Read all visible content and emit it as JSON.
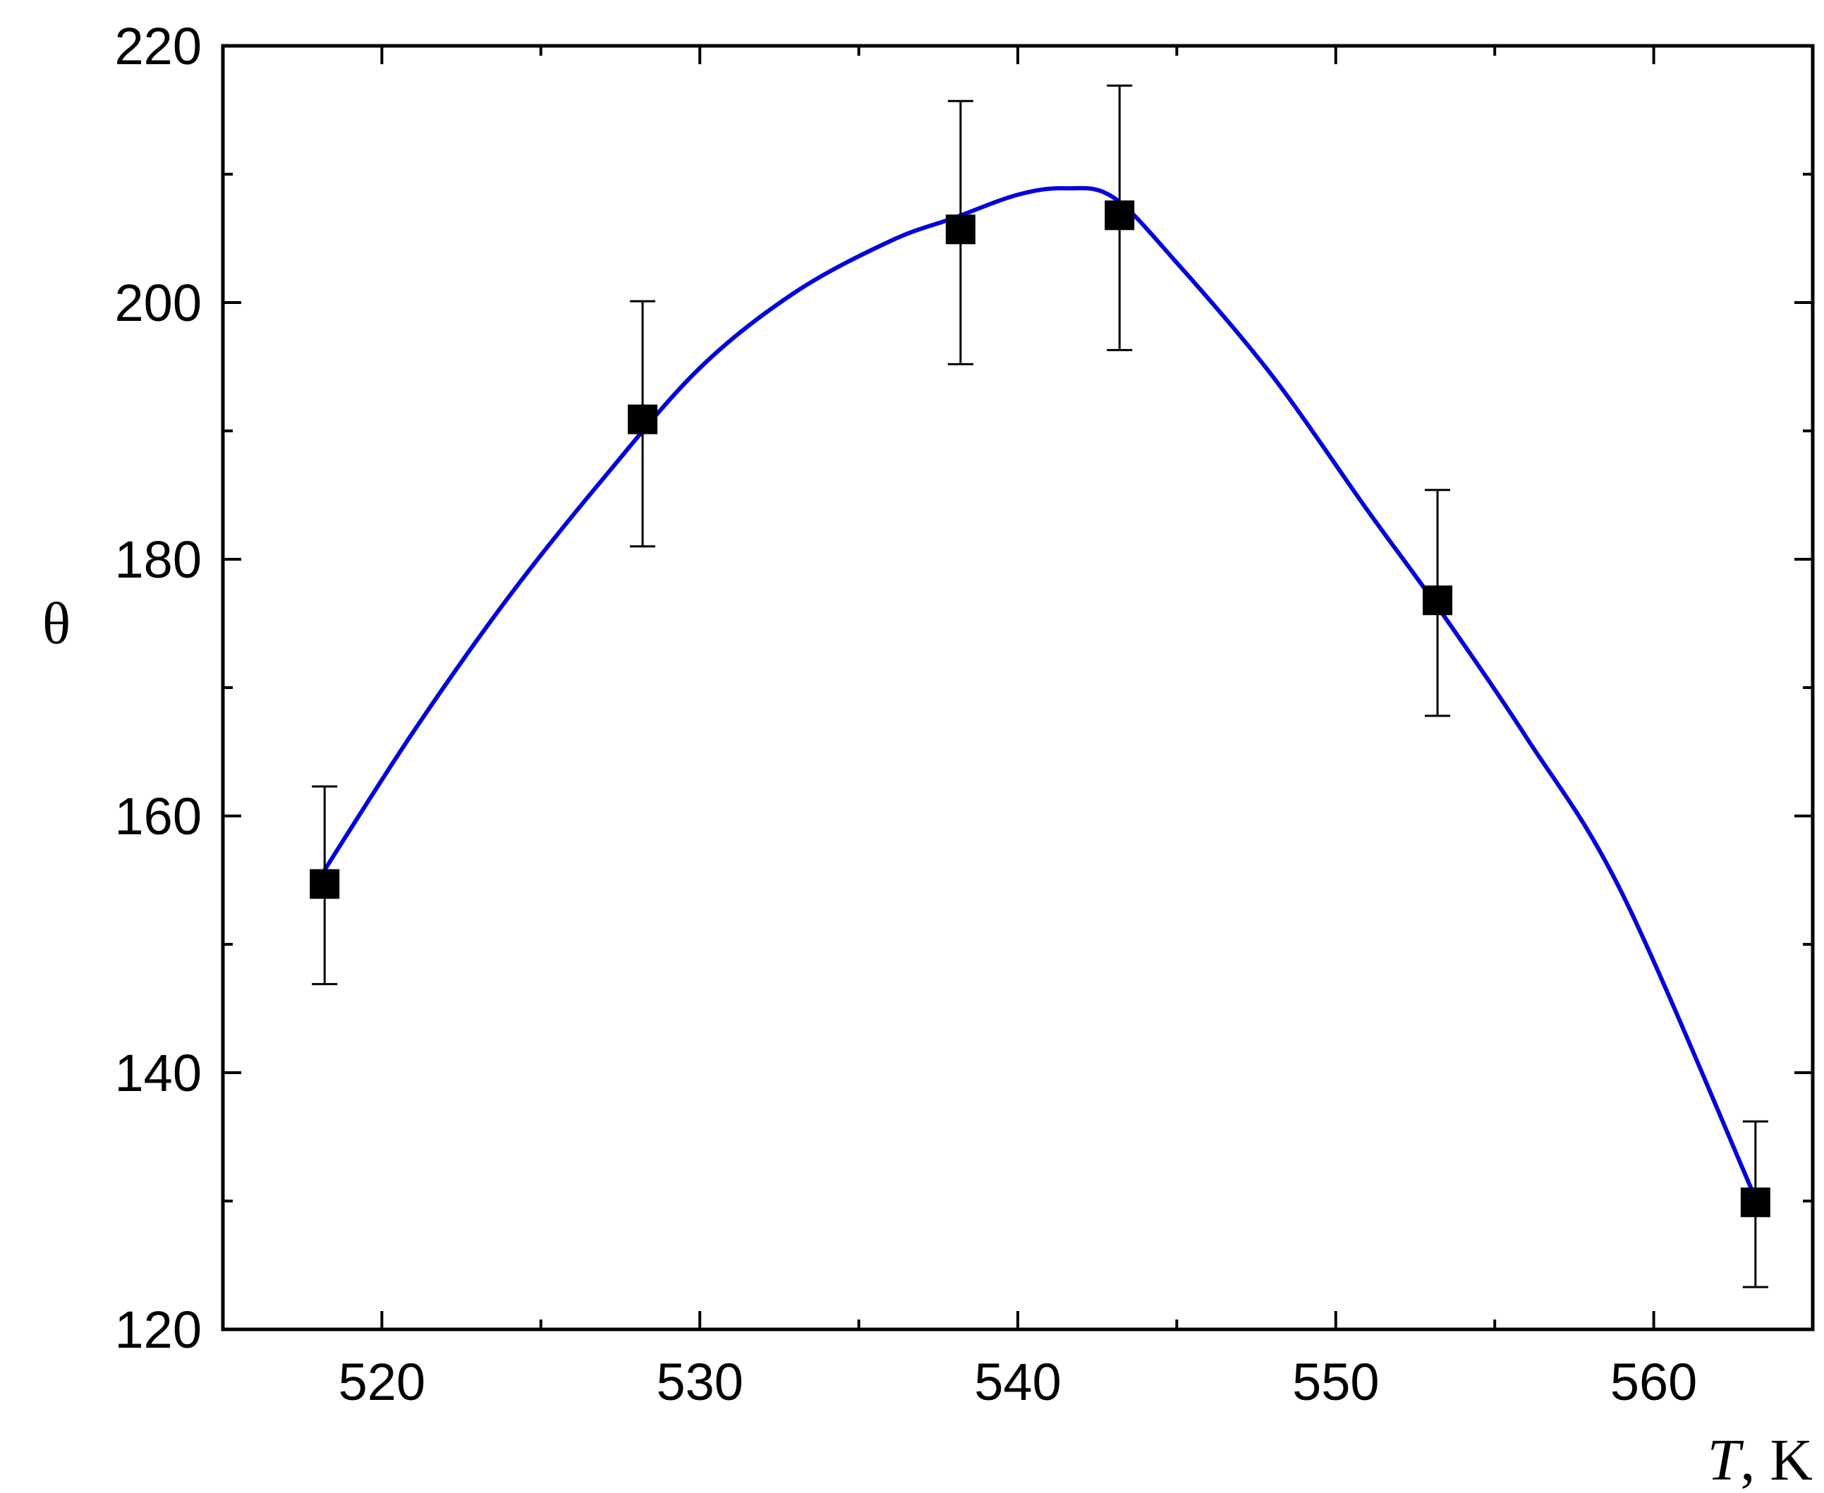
{
  "chart_data": {
    "type": "scatter",
    "title": "",
    "xlabel_italic": "T",
    "xlabel_rest": ", K",
    "ylabel": "θ",
    "xlim": [
      515,
      565
    ],
    "ylim": [
      120,
      220
    ],
    "x_ticks": [
      520,
      530,
      540,
      550,
      560
    ],
    "x_minor_ticks": [
      525,
      535,
      545,
      555
    ],
    "y_ticks": [
      120,
      140,
      160,
      180,
      200,
      220
    ],
    "y_minor_ticks": [
      130,
      150,
      170,
      190,
      210
    ],
    "grid": false,
    "colors": {
      "points": "#000000",
      "fit_line": "#0000dd",
      "axes": "#000000"
    },
    "series": [
      {
        "type": "scatter",
        "marker": "square",
        "points": [
          {
            "x": 518.2,
            "y": 154.7,
            "err_low": 146.9,
            "err_high": 162.3
          },
          {
            "x": 528.2,
            "y": 190.9,
            "err_low": 181.0,
            "err_high": 200.1
          },
          {
            "x": 538.2,
            "y": 205.7,
            "err_low": 195.2,
            "err_high": 215.7
          },
          {
            "x": 543.2,
            "y": 206.8,
            "err_low": 196.3,
            "err_high": 216.9
          },
          {
            "x": 553.2,
            "y": 176.8,
            "err_low": 167.8,
            "err_high": 185.4
          },
          {
            "x": 563.2,
            "y": 129.9,
            "err_low": 123.3,
            "err_high": 136.2
          }
        ]
      },
      {
        "type": "line",
        "x": [
          518.2,
          521,
          524,
          527,
          530,
          533,
          536,
          538,
          540,
          541.5,
          543,
          545,
          548,
          551,
          553.2,
          556,
          559,
          563.2
        ],
        "y": [
          155.8,
          166.6,
          177.1,
          186.4,
          194.9,
          200.8,
          204.8,
          206.6,
          208.4,
          208.9,
          208.2,
          203.1,
          194.3,
          183.8,
          176.3,
          166.1,
          154.0,
          130.2
        ]
      }
    ]
  }
}
